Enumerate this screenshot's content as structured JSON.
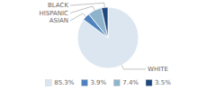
{
  "chart_data": {
    "type": "pie",
    "categories": [
      "WHITE",
      "ASIAN",
      "HISPANIC",
      "BLACK"
    ],
    "values": [
      85.3,
      3.9,
      7.4,
      3.5
    ],
    "value_labels": [
      "85.3%",
      "3.9%",
      "7.4%",
      "3.5%"
    ],
    "colors": [
      "#dce6f0",
      "#4f81bd",
      "#8eb4cb",
      "#1f497d"
    ],
    "legend": "bottom"
  }
}
